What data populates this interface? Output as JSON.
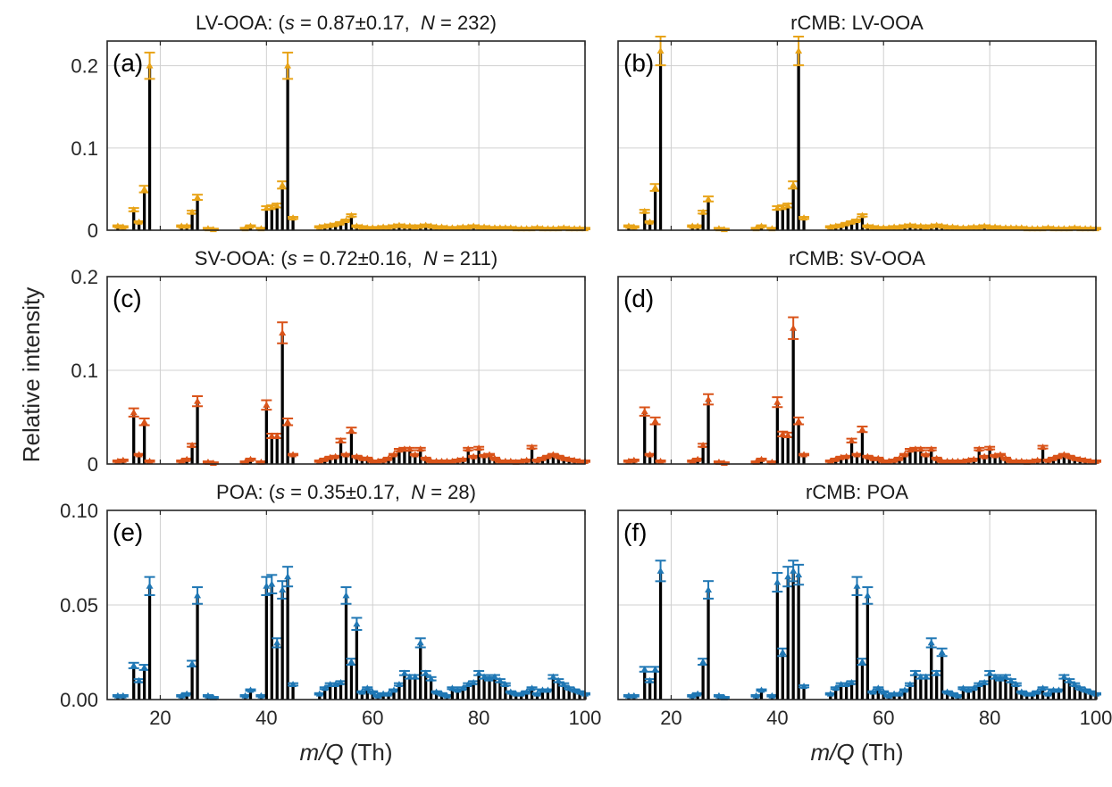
{
  "figure": {
    "ylabel": "Relative intensity"
  },
  "chart_data": [
    {
      "type": "bar",
      "panel_label": "(a)",
      "title": "LV-OOA: (s = 0.87±0.17,  N = 232)",
      "title_parts": {
        "species": "LV-OOA: (",
        "s_sym": "s",
        "s_val": " = 0.87±0.17,  ",
        "n_sym": "N",
        "n_val": " = 232)"
      },
      "xlim": [
        10,
        100
      ],
      "ylim": [
        0,
        0.23
      ],
      "xticks": [
        20,
        40,
        60,
        80,
        100
      ],
      "yticks": [
        0,
        0.1,
        0.2
      ],
      "ytick_labels": [
        "0",
        "0.1",
        "0.2"
      ],
      "xlabel": "",
      "grid": true,
      "errorbar_color": "#e8a317",
      "x": [
        12,
        13,
        15,
        16,
        17,
        18,
        24,
        25,
        26,
        27,
        29,
        30,
        36,
        37,
        39,
        40,
        41,
        42,
        43,
        44,
        45,
        50,
        51,
        52,
        53,
        54,
        55,
        56,
        57,
        58,
        59,
        60,
        61,
        62,
        63,
        64,
        65,
        66,
        67,
        68,
        69,
        70,
        71,
        72,
        73,
        74,
        75,
        76,
        77,
        78,
        79,
        80,
        81,
        82,
        83,
        84,
        85,
        86,
        87,
        88,
        89,
        90,
        91,
        92,
        93,
        94,
        95,
        96,
        97,
        98,
        99,
        100
      ],
      "values": [
        0.005,
        0.004,
        0.025,
        0.01,
        0.05,
        0.2,
        0.005,
        0.005,
        0.022,
        0.04,
        0.002,
        0.001,
        0.002,
        0.005,
        0.002,
        0.027,
        0.028,
        0.03,
        0.055,
        0.2,
        0.015,
        0.004,
        0.005,
        0.006,
        0.007,
        0.009,
        0.012,
        0.018,
        0.005,
        0.004,
        0.003,
        0.003,
        0.003,
        0.004,
        0.004,
        0.005,
        0.006,
        0.005,
        0.005,
        0.004,
        0.005,
        0.006,
        0.005,
        0.004,
        0.004,
        0.003,
        0.003,
        0.003,
        0.004,
        0.004,
        0.005,
        0.004,
        0.004,
        0.003,
        0.003,
        0.003,
        0.003,
        0.003,
        0.002,
        0.002,
        0.002,
        0.002,
        0.003,
        0.002,
        0.002,
        0.002,
        0.002,
        0.003,
        0.002,
        0.002,
        0.002,
        0.002
      ]
    },
    {
      "type": "bar",
      "panel_label": "(b)",
      "title": "rCMB: LV-OOA",
      "xlim": [
        10,
        100
      ],
      "ylim": [
        0,
        0.23
      ],
      "xticks": [
        20,
        40,
        60,
        80,
        100
      ],
      "yticks": [
        0,
        0.1,
        0.2
      ],
      "xlabel": "",
      "grid": true,
      "errorbar_color": "#e8a317",
      "x": [
        12,
        13,
        15,
        16,
        17,
        18,
        24,
        25,
        26,
        27,
        29,
        30,
        36,
        37,
        39,
        40,
        41,
        42,
        43,
        44,
        45,
        50,
        51,
        52,
        53,
        54,
        55,
        56,
        57,
        58,
        59,
        60,
        61,
        62,
        63,
        64,
        65,
        66,
        67,
        68,
        69,
        70,
        71,
        72,
        73,
        74,
        75,
        76,
        77,
        78,
        79,
        80,
        81,
        82,
        83,
        84,
        85,
        86,
        87,
        88,
        89,
        90,
        91,
        92,
        93,
        94,
        95,
        96,
        97,
        98,
        99,
        100
      ],
      "values": [
        0.005,
        0.004,
        0.023,
        0.01,
        0.052,
        0.218,
        0.005,
        0.005,
        0.022,
        0.038,
        0.002,
        0.001,
        0.002,
        0.005,
        0.002,
        0.027,
        0.028,
        0.03,
        0.055,
        0.218,
        0.015,
        0.004,
        0.005,
        0.006,
        0.008,
        0.01,
        0.012,
        0.018,
        0.005,
        0.004,
        0.003,
        0.003,
        0.003,
        0.004,
        0.004,
        0.005,
        0.006,
        0.005,
        0.005,
        0.004,
        0.005,
        0.006,
        0.005,
        0.004,
        0.004,
        0.003,
        0.003,
        0.003,
        0.004,
        0.004,
        0.005,
        0.004,
        0.004,
        0.003,
        0.003,
        0.003,
        0.003,
        0.003,
        0.002,
        0.002,
        0.002,
        0.002,
        0.003,
        0.002,
        0.002,
        0.002,
        0.002,
        0.003,
        0.002,
        0.002,
        0.002,
        0.002
      ]
    },
    {
      "type": "bar",
      "panel_label": "(c)",
      "title": "SV-OOA: (s = 0.72±0.16,  N = 211)",
      "title_parts": {
        "species": "SV-OOA: (",
        "s_sym": "s",
        "s_val": " = 0.72±0.16,  ",
        "n_sym": "N",
        "n_val": " = 211)"
      },
      "xlim": [
        10,
        100
      ],
      "ylim": [
        0,
        0.2
      ],
      "xticks": [
        20,
        40,
        60,
        80,
        100
      ],
      "yticks": [
        0,
        0.1,
        0.2
      ],
      "ytick_labels": [
        "0",
        "0.1",
        "0.2"
      ],
      "xlabel": "",
      "grid": true,
      "errorbar_color": "#d95319",
      "x": [
        12,
        13,
        15,
        16,
        17,
        18,
        24,
        25,
        26,
        27,
        29,
        30,
        36,
        37,
        39,
        40,
        41,
        42,
        43,
        44,
        45,
        50,
        51,
        52,
        53,
        54,
        55,
        56,
        57,
        58,
        59,
        60,
        61,
        62,
        63,
        64,
        65,
        66,
        67,
        68,
        69,
        70,
        71,
        72,
        73,
        74,
        75,
        76,
        77,
        78,
        79,
        80,
        81,
        82,
        83,
        84,
        85,
        86,
        87,
        88,
        89,
        90,
        91,
        92,
        93,
        94,
        95,
        96,
        97,
        98,
        99,
        100
      ],
      "values": [
        0.003,
        0.004,
        0.055,
        0.01,
        0.045,
        0.003,
        0.003,
        0.005,
        0.02,
        0.067,
        0.002,
        0.001,
        0.002,
        0.005,
        0.002,
        0.063,
        0.03,
        0.03,
        0.14,
        0.045,
        0.01,
        0.003,
        0.005,
        0.007,
        0.008,
        0.025,
        0.01,
        0.036,
        0.008,
        0.006,
        0.006,
        0.003,
        0.003,
        0.004,
        0.006,
        0.01,
        0.015,
        0.016,
        0.016,
        0.01,
        0.016,
        0.006,
        0.003,
        0.003,
        0.003,
        0.003,
        0.003,
        0.004,
        0.005,
        0.016,
        0.008,
        0.017,
        0.009,
        0.01,
        0.006,
        0.003,
        0.003,
        0.003,
        0.002,
        0.003,
        0.004,
        0.018,
        0.004,
        0.006,
        0.008,
        0.01,
        0.008,
        0.006,
        0.005,
        0.004,
        0.003,
        0.003
      ]
    },
    {
      "type": "bar",
      "panel_label": "(d)",
      "title": "rCMB: SV-OOA",
      "xlim": [
        10,
        100
      ],
      "ylim": [
        0,
        0.2
      ],
      "xticks": [
        20,
        40,
        60,
        80,
        100
      ],
      "yticks": [
        0,
        0.1,
        0.2
      ],
      "xlabel": "",
      "grid": true,
      "errorbar_color": "#d95319",
      "x": [
        12,
        13,
        15,
        16,
        17,
        18,
        24,
        25,
        26,
        27,
        29,
        30,
        36,
        37,
        39,
        40,
        41,
        42,
        43,
        44,
        45,
        50,
        51,
        52,
        53,
        54,
        55,
        56,
        57,
        58,
        59,
        60,
        61,
        62,
        63,
        64,
        65,
        66,
        67,
        68,
        69,
        70,
        71,
        72,
        73,
        74,
        75,
        76,
        77,
        78,
        79,
        80,
        81,
        82,
        83,
        84,
        85,
        86,
        87,
        88,
        89,
        90,
        91,
        92,
        93,
        94,
        95,
        96,
        97,
        98,
        99,
        100
      ],
      "values": [
        0.003,
        0.004,
        0.056,
        0.01,
        0.046,
        0.003,
        0.003,
        0.005,
        0.02,
        0.069,
        0.002,
        0.001,
        0.002,
        0.005,
        0.002,
        0.066,
        0.032,
        0.031,
        0.145,
        0.046,
        0.01,
        0.003,
        0.005,
        0.007,
        0.008,
        0.025,
        0.01,
        0.037,
        0.008,
        0.006,
        0.006,
        0.003,
        0.003,
        0.004,
        0.006,
        0.01,
        0.015,
        0.016,
        0.016,
        0.01,
        0.016,
        0.006,
        0.003,
        0.003,
        0.003,
        0.003,
        0.003,
        0.004,
        0.005,
        0.016,
        0.008,
        0.017,
        0.009,
        0.01,
        0.006,
        0.003,
        0.003,
        0.003,
        0.002,
        0.003,
        0.004,
        0.018,
        0.004,
        0.006,
        0.008,
        0.01,
        0.008,
        0.006,
        0.005,
        0.004,
        0.003,
        0.003
      ]
    },
    {
      "type": "bar",
      "panel_label": "(e)",
      "title": "POA: (s = 0.35±0.17,  N = 28)",
      "title_parts": {
        "species": "POA: (",
        "s_sym": "s",
        "s_val": " = 0.35±0.17,  ",
        "n_sym": "N",
        "n_val": " = 28)"
      },
      "xlim": [
        10,
        100
      ],
      "ylim": [
        0,
        0.1
      ],
      "xticks": [
        20,
        40,
        60,
        80,
        100
      ],
      "xtick_labels": [
        "20",
        "40",
        "60",
        "80",
        "100"
      ],
      "yticks": [
        0,
        0.05,
        0.1
      ],
      "ytick_labels": [
        "0.00",
        "0.05",
        "0.10"
      ],
      "xlabel": "m/Q (Th)",
      "xlabel_parts": {
        "sym": "m/Q",
        "unit": " (Th)"
      },
      "grid": true,
      "errorbar_color": "#1f77b4",
      "x": [
        12,
        13,
        15,
        16,
        17,
        18,
        24,
        25,
        26,
        27,
        29,
        30,
        36,
        37,
        39,
        40,
        41,
        42,
        43,
        44,
        45,
        50,
        51,
        52,
        53,
        54,
        55,
        56,
        57,
        58,
        59,
        60,
        61,
        62,
        63,
        64,
        65,
        66,
        67,
        68,
        69,
        70,
        71,
        72,
        73,
        74,
        75,
        76,
        77,
        78,
        79,
        80,
        81,
        82,
        83,
        84,
        85,
        86,
        87,
        88,
        89,
        90,
        91,
        92,
        93,
        94,
        95,
        96,
        97,
        98,
        99,
        100
      ],
      "values": [
        0.002,
        0.002,
        0.018,
        0.01,
        0.017,
        0.06,
        0.002,
        0.003,
        0.019,
        0.055,
        0.002,
        0.001,
        0.002,
        0.005,
        0.002,
        0.06,
        0.061,
        0.03,
        0.058,
        0.065,
        0.008,
        0.003,
        0.006,
        0.008,
        0.008,
        0.009,
        0.055,
        0.02,
        0.04,
        0.004,
        0.006,
        0.004,
        0.002,
        0.003,
        0.003,
        0.005,
        0.008,
        0.014,
        0.012,
        0.012,
        0.03,
        0.014,
        0.011,
        0.004,
        0.003,
        0.002,
        0.006,
        0.005,
        0.006,
        0.008,
        0.009,
        0.014,
        0.012,
        0.011,
        0.012,
        0.01,
        0.008,
        0.004,
        0.003,
        0.003,
        0.004,
        0.006,
        0.003,
        0.005,
        0.005,
        0.012,
        0.01,
        0.008,
        0.006,
        0.005,
        0.004,
        0.003
      ]
    },
    {
      "type": "bar",
      "panel_label": "(f)",
      "title": "rCMB: POA",
      "xlim": [
        10,
        100
      ],
      "ylim": [
        0,
        0.1
      ],
      "xticks": [
        20,
        40,
        60,
        80,
        100
      ],
      "xtick_labels": [
        "20",
        "40",
        "60",
        "80",
        "100"
      ],
      "yticks": [
        0,
        0.05,
        0.1
      ],
      "xlabel": "m/Q (Th)",
      "xlabel_parts": {
        "sym": "m/Q",
        "unit": " (Th)"
      },
      "grid": true,
      "errorbar_color": "#1f77b4",
      "x": [
        12,
        13,
        15,
        16,
        17,
        18,
        24,
        25,
        26,
        27,
        29,
        30,
        36,
        37,
        39,
        40,
        41,
        42,
        43,
        44,
        45,
        50,
        51,
        52,
        53,
        54,
        55,
        56,
        57,
        58,
        59,
        60,
        61,
        62,
        63,
        64,
        65,
        66,
        67,
        68,
        69,
        70,
        71,
        72,
        73,
        74,
        75,
        76,
        77,
        78,
        79,
        80,
        81,
        82,
        83,
        84,
        85,
        86,
        87,
        88,
        89,
        90,
        91,
        92,
        93,
        94,
        95,
        96,
        97,
        98,
        99,
        100
      ],
      "values": [
        0.002,
        0.002,
        0.016,
        0.01,
        0.016,
        0.068,
        0.002,
        0.003,
        0.02,
        0.058,
        0.002,
        0.001,
        0.002,
        0.005,
        0.002,
        0.062,
        0.025,
        0.065,
        0.068,
        0.066,
        0.007,
        0.003,
        0.006,
        0.008,
        0.008,
        0.009,
        0.06,
        0.02,
        0.055,
        0.004,
        0.006,
        0.004,
        0.002,
        0.003,
        0.003,
        0.005,
        0.008,
        0.014,
        0.012,
        0.012,
        0.03,
        0.014,
        0.025,
        0.004,
        0.003,
        0.002,
        0.006,
        0.005,
        0.006,
        0.008,
        0.009,
        0.014,
        0.012,
        0.011,
        0.012,
        0.01,
        0.008,
        0.004,
        0.003,
        0.003,
        0.004,
        0.006,
        0.003,
        0.005,
        0.005,
        0.012,
        0.01,
        0.008,
        0.006,
        0.005,
        0.004,
        0.003
      ]
    }
  ]
}
